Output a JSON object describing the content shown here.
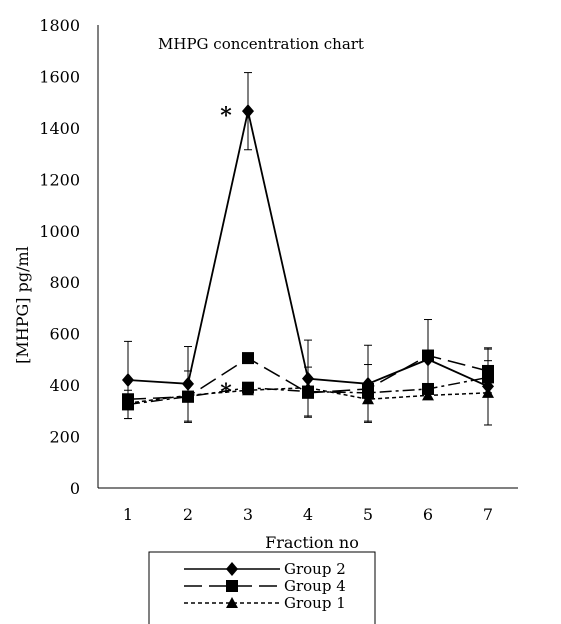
{
  "chart_data": {
    "type": "line",
    "title": "MHPG concentration chart",
    "xlabel": "Fraction no",
    "ylabel": "[MHPG] pg/ml",
    "categories": [
      "1",
      "2",
      "3",
      "4",
      "5",
      "6",
      "7"
    ],
    "ylim": [
      0,
      1800
    ],
    "yticks": [
      "0",
      "200",
      "400",
      "600",
      "800",
      "1000",
      "1200",
      "1400",
      "1600",
      "1800"
    ],
    "grid": false,
    "legend_position": "bottom-center",
    "series": [
      {
        "name": "Group 2",
        "marker": "diamond",
        "line": "solid",
        "values": [
          420,
          405,
          1465,
          425,
          405,
          500,
          395
        ],
        "error": [
          150,
          145,
          150,
          150,
          150,
          155,
          150
        ]
      },
      {
        "name": "Group 4",
        "marker": "square",
        "line": "long-dash",
        "values": [
          345,
          355,
          505,
          370,
          385,
          515,
          455
        ],
        "error": [
          0,
          0,
          0,
          0,
          0,
          0,
          85
        ]
      },
      {
        "name": "Group 1",
        "marker": "triangle",
        "line": "short-dash",
        "values": [
          330,
          360,
          380,
          390,
          345,
          360,
          370
        ],
        "error": [
          0,
          0,
          0,
          0,
          0,
          0,
          125
        ]
      },
      {
        "name": "",
        "marker": "square",
        "line": "dash-dot",
        "values": [
          325,
          355,
          390,
          375,
          370,
          385,
          430
        ],
        "error": [
          55,
          100,
          0,
          95,
          110,
          0,
          0
        ]
      }
    ],
    "annotations": [
      {
        "text": "*",
        "x": "3",
        "y": 1465
      },
      {
        "text": "*",
        "x": "3",
        "y": 390
      }
    ],
    "colors": {
      "line": "#000000",
      "background": "#ffffff"
    }
  }
}
